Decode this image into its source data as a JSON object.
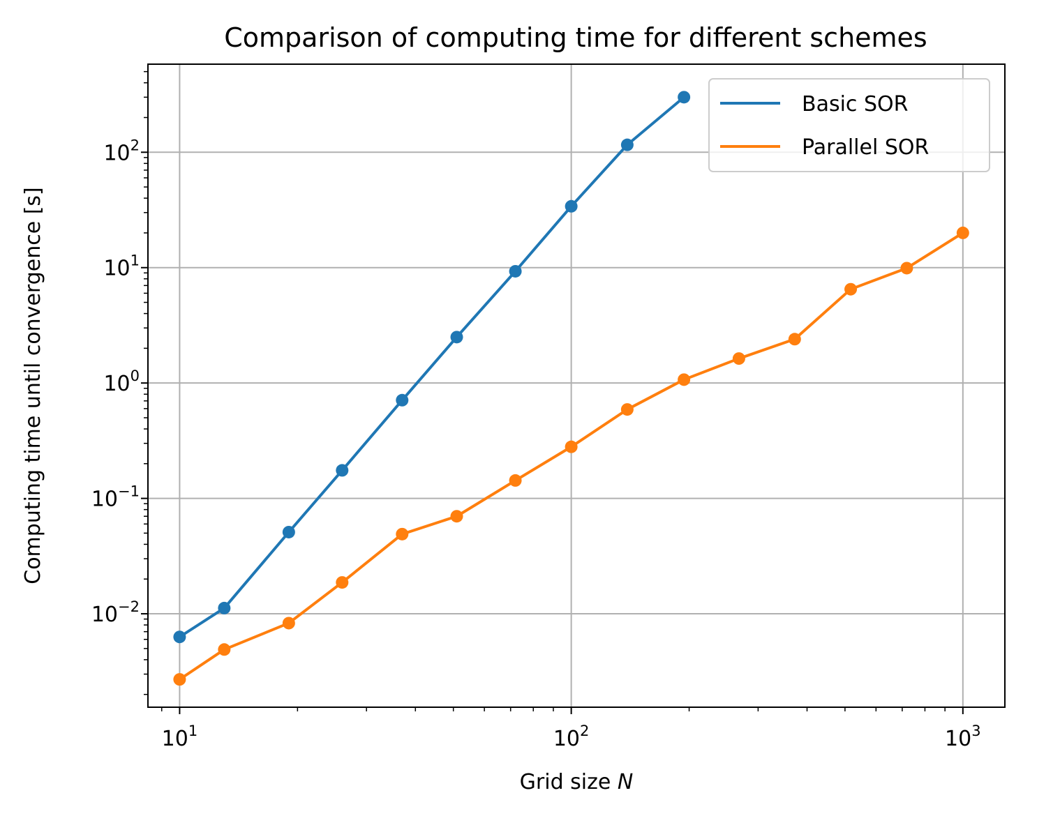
{
  "chart_data": {
    "type": "line",
    "title": "Comparison of computing time for different schemes",
    "xlabel_prefix": "Grid size ",
    "xlabel_var": "N",
    "ylabel": "Computing time until convergence [s]",
    "xscale": "log",
    "yscale": "log",
    "xlim": [
      8.3,
      1280
    ],
    "ylim": [
      0.00155,
      580
    ],
    "grid": true,
    "legend_position": "top-right",
    "x_ticks": [
      {
        "value": 10,
        "base": "10",
        "exp": "1"
      },
      {
        "value": 100,
        "base": "10",
        "exp": "2"
      },
      {
        "value": 1000,
        "base": "10",
        "exp": "3"
      }
    ],
    "y_ticks": [
      {
        "value": 0.01,
        "base": "10",
        "exp": "−2"
      },
      {
        "value": 0.1,
        "base": "10",
        "exp": "−1"
      },
      {
        "value": 1,
        "base": "10",
        "exp": "0"
      },
      {
        "value": 10,
        "base": "10",
        "exp": "1"
      },
      {
        "value": 100,
        "base": "10",
        "exp": "2"
      }
    ],
    "series": [
      {
        "name": "Basic SOR",
        "color": "#1f77b4",
        "x": [
          10,
          13,
          19,
          26,
          37,
          51,
          72,
          100,
          139,
          194
        ],
        "y": [
          0.0063,
          0.0112,
          0.051,
          0.175,
          0.71,
          2.5,
          9.3,
          34,
          116,
          300
        ]
      },
      {
        "name": "Parallel SOR",
        "color": "#ff7f0e",
        "x": [
          10,
          13,
          19,
          26,
          37,
          51,
          72,
          100,
          139,
          194,
          268,
          372,
          517,
          719,
          1000
        ],
        "y": [
          0.0027,
          0.0049,
          0.0083,
          0.0187,
          0.049,
          0.07,
          0.143,
          0.28,
          0.59,
          1.07,
          1.63,
          2.4,
          6.5,
          9.9,
          20
        ]
      }
    ]
  }
}
